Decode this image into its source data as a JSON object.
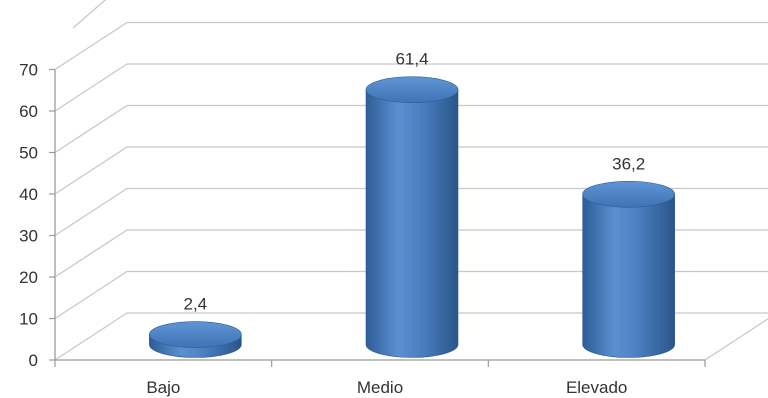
{
  "chart_data": {
    "type": "bar",
    "style": "3d-cylinder",
    "categories": [
      "Bajo",
      "Medio",
      "Elevado"
    ],
    "values": [
      2.4,
      61.4,
      36.2
    ],
    "data_labels": [
      "2,4",
      "61,4",
      "36,2"
    ],
    "title": "",
    "xlabel": "",
    "ylabel": "",
    "ylim": [
      0,
      70
    ],
    "yticks": [
      0,
      10,
      20,
      30,
      40,
      50,
      60,
      70
    ],
    "ytick_labels": [
      "0",
      "10",
      "20",
      "30",
      "40",
      "50",
      "60",
      "70"
    ],
    "grid": true,
    "legend": "none",
    "colors": {
      "bar": "#4a7fc1",
      "bar_dark": "#2e5d96",
      "bar_light": "#79a7dc",
      "grid": "#c8c8c8",
      "axis": "#9a9a9a",
      "text": "#333333"
    }
  }
}
